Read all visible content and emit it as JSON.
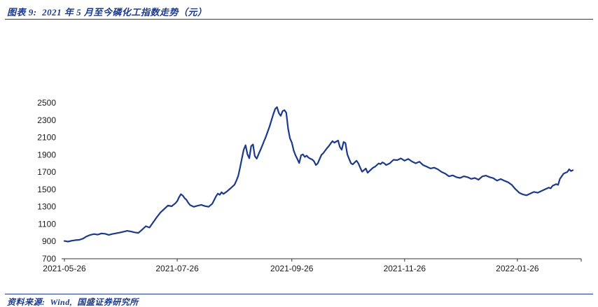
{
  "page": {
    "background": "#ffffff",
    "accent_color": "#1b3a8c"
  },
  "header": {
    "title": "图表 9:  2021 年 5 月至今磷化工指数走势（元）"
  },
  "footer": {
    "source": "资料来源:  Wind,  国盛证券研究所"
  },
  "chart_data": {
    "type": "line",
    "title": "2021 年 5 月至今磷化工指数走势（元）",
    "unit": "元",
    "line_color": "#1b3a8c",
    "axis_color": "#333333",
    "tick_label_color": "#1a1a1a",
    "grid": false,
    "legend": "none",
    "ylim": [
      700,
      2500
    ],
    "y_ticks": [
      700,
      900,
      1100,
      1300,
      1500,
      1700,
      1900,
      2100,
      2300,
      2500
    ],
    "xlim": [
      0,
      278
    ],
    "x_ticks": [
      {
        "day": 0,
        "label": "2021-05-26"
      },
      {
        "day": 61,
        "label": "2021-07-26"
      },
      {
        "day": 123,
        "label": "2021-09-26"
      },
      {
        "day": 184,
        "label": "2021-11-26"
      },
      {
        "day": 245,
        "label": "2022-01-26"
      }
    ],
    "series": [
      {
        "name": "磷化工指数",
        "points": [
          [
            0,
            905
          ],
          [
            2,
            898
          ],
          [
            4,
            908
          ],
          [
            6,
            915
          ],
          [
            8,
            918
          ],
          [
            10,
            932
          ],
          [
            12,
            958
          ],
          [
            14,
            975
          ],
          [
            16,
            985
          ],
          [
            18,
            978
          ],
          [
            20,
            992
          ],
          [
            22,
            988
          ],
          [
            24,
            975
          ],
          [
            26,
            986
          ],
          [
            28,
            994
          ],
          [
            30,
            1002
          ],
          [
            32,
            1012
          ],
          [
            34,
            1022
          ],
          [
            36,
            1014
          ],
          [
            38,
            1004
          ],
          [
            40,
            998
          ],
          [
            42,
            1035
          ],
          [
            44,
            1075
          ],
          [
            46,
            1060
          ],
          [
            48,
            1120
          ],
          [
            50,
            1180
          ],
          [
            52,
            1235
          ],
          [
            54,
            1275
          ],
          [
            56,
            1315
          ],
          [
            58,
            1305
          ],
          [
            60,
            1340
          ],
          [
            61,
            1365
          ],
          [
            62,
            1410
          ],
          [
            63,
            1445
          ],
          [
            64,
            1430
          ],
          [
            65,
            1400
          ],
          [
            66,
            1380
          ],
          [
            67,
            1345
          ],
          [
            68,
            1320
          ],
          [
            70,
            1300
          ],
          [
            72,
            1312
          ],
          [
            74,
            1322
          ],
          [
            76,
            1308
          ],
          [
            78,
            1300
          ],
          [
            80,
            1335
          ],
          [
            82,
            1420
          ],
          [
            83,
            1452
          ],
          [
            84,
            1438
          ],
          [
            85,
            1468
          ],
          [
            86,
            1448
          ],
          [
            88,
            1478
          ],
          [
            90,
            1515
          ],
          [
            92,
            1555
          ],
          [
            93,
            1600
          ],
          [
            94,
            1655
          ],
          [
            95,
            1750
          ],
          [
            96,
            1860
          ],
          [
            97,
            1960
          ],
          [
            98,
            2010
          ],
          [
            99,
            1905
          ],
          [
            100,
            1860
          ],
          [
            101,
            2000
          ],
          [
            102,
            2020
          ],
          [
            103,
            1885
          ],
          [
            104,
            1855
          ],
          [
            105,
            1905
          ],
          [
            106,
            1955
          ],
          [
            107,
            2005
          ],
          [
            108,
            2060
          ],
          [
            109,
            2110
          ],
          [
            110,
            2170
          ],
          [
            111,
            2230
          ],
          [
            112,
            2300
          ],
          [
            113,
            2370
          ],
          [
            114,
            2430
          ],
          [
            115,
            2450
          ],
          [
            116,
            2380
          ],
          [
            117,
            2350
          ],
          [
            118,
            2405
          ],
          [
            119,
            2415
          ],
          [
            120,
            2385
          ],
          [
            121,
            2200
          ],
          [
            122,
            2090
          ],
          [
            123,
            2040
          ],
          [
            124,
            1950
          ],
          [
            125,
            1895
          ],
          [
            126,
            1850
          ],
          [
            127,
            1805
          ],
          [
            128,
            1895
          ],
          [
            129,
            1905
          ],
          [
            130,
            1875
          ],
          [
            131,
            1890
          ],
          [
            132,
            1868
          ],
          [
            133,
            1855
          ],
          [
            134,
            1845
          ],
          [
            135,
            1825
          ],
          [
            136,
            1782
          ],
          [
            137,
            1800
          ],
          [
            138,
            1850
          ],
          [
            139,
            1898
          ],
          [
            140,
            1918
          ],
          [
            141,
            1948
          ],
          [
            142,
            1975
          ],
          [
            143,
            2000
          ],
          [
            144,
            2030
          ],
          [
            145,
            2058
          ],
          [
            146,
            2040
          ],
          [
            147,
            2052
          ],
          [
            148,
            2065
          ],
          [
            149,
            1990
          ],
          [
            150,
            1958
          ],
          [
            151,
            2048
          ],
          [
            152,
            2035
          ],
          [
            153,
            1905
          ],
          [
            154,
            1852
          ],
          [
            155,
            1802
          ],
          [
            156,
            1790
          ],
          [
            157,
            1812
          ],
          [
            158,
            1832
          ],
          [
            159,
            1800
          ],
          [
            160,
            1752
          ],
          [
            161,
            1705
          ],
          [
            162,
            1722
          ],
          [
            163,
            1742
          ],
          [
            164,
            1692
          ],
          [
            165,
            1712
          ],
          [
            166,
            1732
          ],
          [
            167,
            1752
          ],
          [
            168,
            1762
          ],
          [
            169,
            1782
          ],
          [
            170,
            1800
          ],
          [
            171,
            1792
          ],
          [
            172,
            1812
          ],
          [
            173,
            1802
          ],
          [
            174,
            1782
          ],
          [
            175,
            1792
          ],
          [
            176,
            1802
          ],
          [
            177,
            1822
          ],
          [
            178,
            1842
          ],
          [
            180,
            1838
          ],
          [
            182,
            1858
          ],
          [
            184,
            1832
          ],
          [
            186,
            1852
          ],
          [
            188,
            1822
          ],
          [
            190,
            1802
          ],
          [
            192,
            1820
          ],
          [
            194,
            1782
          ],
          [
            196,
            1762
          ],
          [
            198,
            1742
          ],
          [
            200,
            1752
          ],
          [
            202,
            1732
          ],
          [
            204,
            1702
          ],
          [
            206,
            1682
          ],
          [
            208,
            1652
          ],
          [
            210,
            1662
          ],
          [
            212,
            1642
          ],
          [
            214,
            1632
          ],
          [
            216,
            1652
          ],
          [
            218,
            1642
          ],
          [
            220,
            1622
          ],
          [
            222,
            1632
          ],
          [
            224,
            1612
          ],
          [
            226,
            1650
          ],
          [
            228,
            1660
          ],
          [
            230,
            1642
          ],
          [
            232,
            1630
          ],
          [
            234,
            1602
          ],
          [
            236,
            1620
          ],
          [
            238,
            1600
          ],
          [
            240,
            1582
          ],
          [
            242,
            1552
          ],
          [
            244,
            1502
          ],
          [
            245,
            1482
          ],
          [
            246,
            1462
          ],
          [
            248,
            1442
          ],
          [
            250,
            1432
          ],
          [
            252,
            1452
          ],
          [
            254,
            1472
          ],
          [
            256,
            1462
          ],
          [
            258,
            1482
          ],
          [
            260,
            1502
          ],
          [
            262,
            1522
          ],
          [
            263,
            1512
          ],
          [
            264,
            1542
          ],
          [
            266,
            1562
          ],
          [
            267,
            1552
          ],
          [
            268,
            1622
          ],
          [
            270,
            1682
          ],
          [
            272,
            1702
          ],
          [
            273,
            1732
          ],
          [
            274,
            1712
          ],
          [
            275,
            1722
          ]
        ]
      }
    ]
  }
}
